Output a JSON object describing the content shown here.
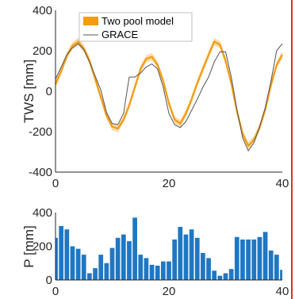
{
  "chart_data": [
    {
      "type": "line",
      "ylabel": "TWS [mm]",
      "xlim": [
        0,
        40
      ],
      "ylim": [
        -400,
        400
      ],
      "xticks": [
        0,
        20,
        40
      ],
      "yticks": [
        -400,
        -200,
        0,
        200,
        400
      ],
      "x": [
        0,
        1,
        2,
        3,
        4,
        5,
        6,
        7,
        8,
        9,
        10,
        11,
        12,
        13,
        14,
        15,
        16,
        17,
        18,
        19,
        20,
        21,
        22,
        23,
        24,
        25,
        26,
        27,
        28,
        29,
        30,
        31,
        32,
        33,
        34,
        35,
        36,
        37,
        38,
        39,
        40
      ],
      "series": [
        {
          "name": "Two pool model",
          "color": "#f39c12",
          "band": 18,
          "values": [
            35,
            100,
            175,
            225,
            245,
            210,
            150,
            60,
            -30,
            -120,
            -175,
            -185,
            -140,
            -70,
            20,
            110,
            160,
            170,
            130,
            50,
            -60,
            -140,
            -160,
            -110,
            -40,
            40,
            110,
            180,
            245,
            230,
            150,
            40,
            -100,
            -210,
            -270,
            -240,
            -180,
            -90,
            30,
            130,
            180
          ]
        },
        {
          "name": "GRACE",
          "color": "#555555",
          "values": [
            60,
            120,
            180,
            215,
            235,
            205,
            145,
            75,
            5,
            -105,
            -160,
            -165,
            -110,
            70,
            70,
            90,
            120,
            135,
            110,
            20,
            -110,
            -165,
            -180,
            -150,
            -95,
            -40,
            20,
            70,
            145,
            195,
            195,
            70,
            -90,
            -230,
            -295,
            -255,
            -175,
            -80,
            50,
            200,
            235
          ]
        }
      ],
      "legend": "top-center"
    },
    {
      "type": "bar",
      "ylabel": "P [mm]",
      "xlim": [
        0,
        40
      ],
      "ylim": [
        0,
        400
      ],
      "xticks": [
        0,
        20,
        40
      ],
      "yticks": [
        0,
        200,
        400
      ],
      "color": "#1f77c4",
      "values": [
        250,
        320,
        300,
        200,
        185,
        150,
        40,
        70,
        150,
        100,
        190,
        250,
        270,
        230,
        370,
        150,
        130,
        90,
        85,
        110,
        110,
        240,
        315,
        270,
        300,
        250,
        160,
        130,
        55,
        25,
        40,
        65,
        255,
        240,
        240,
        240,
        255,
        285,
        175,
        150,
        60
      ]
    }
  ]
}
